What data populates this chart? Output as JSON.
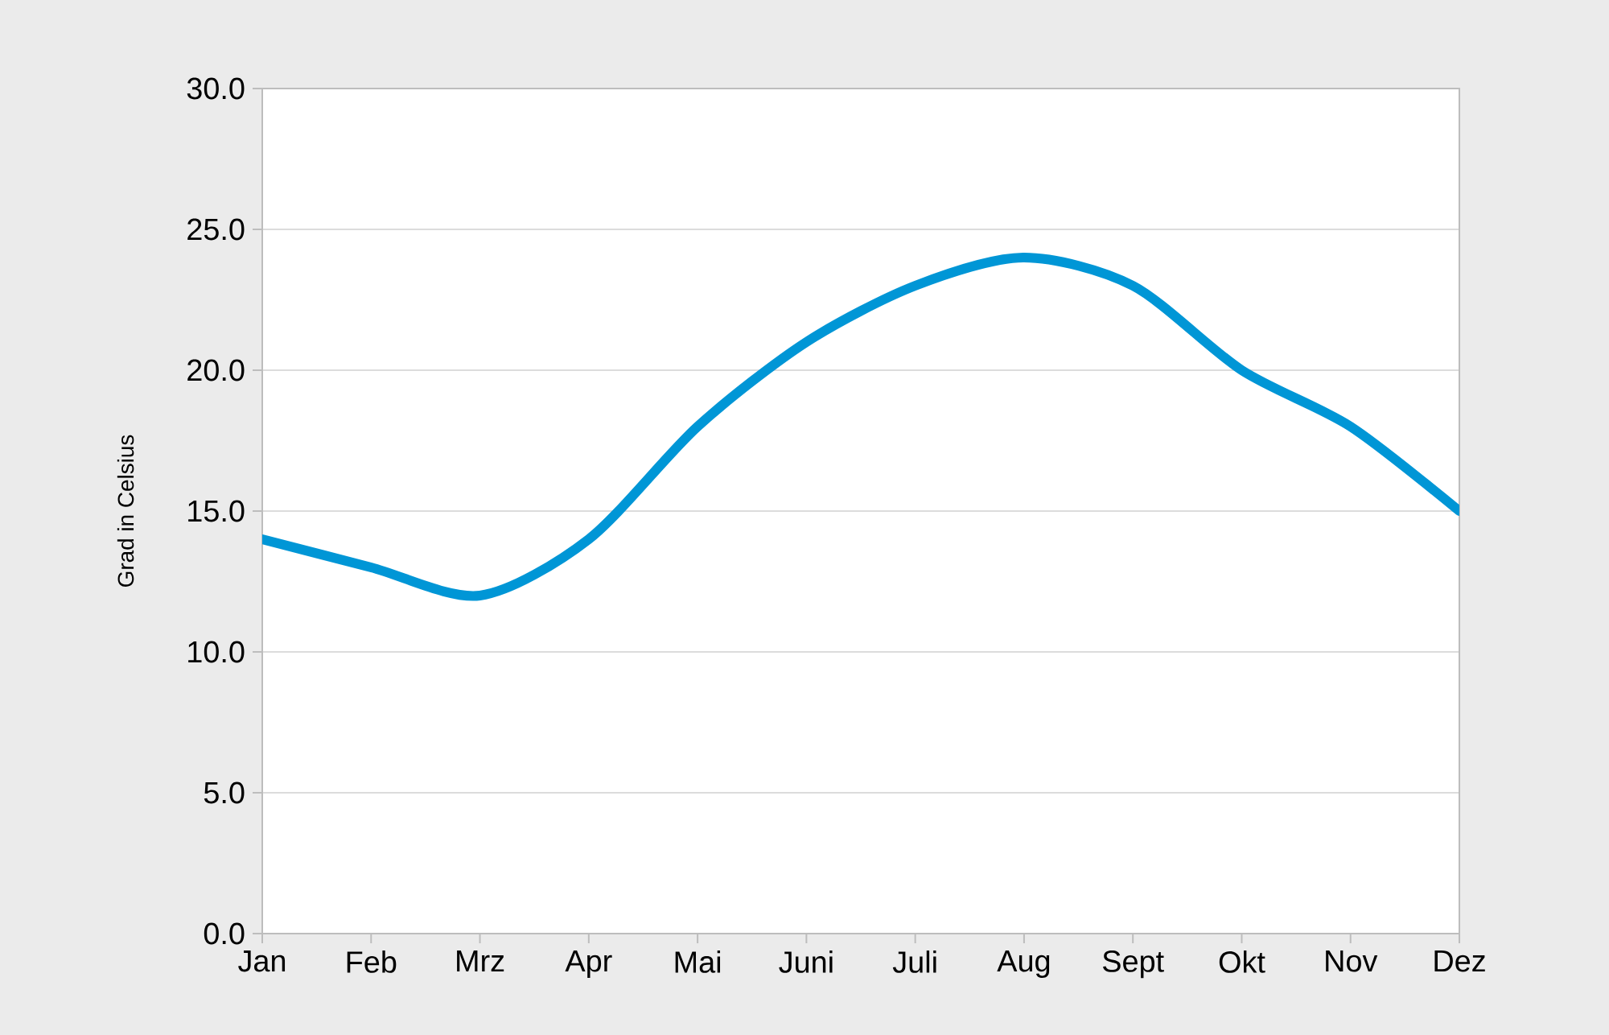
{
  "chart_data": {
    "type": "line",
    "ylabel": "Grad in Celsius",
    "categories": [
      "Jan",
      "Feb",
      "Mrz",
      "Apr",
      "Mai",
      "Juni",
      "Juli",
      "Aug",
      "Sept",
      "Okt",
      "Nov",
      "Dez"
    ],
    "series": [
      {
        "color": "#0096d6",
        "values": [
          14,
          13,
          12,
          14,
          18,
          21,
          23,
          24,
          23,
          20,
          18,
          15
        ]
      }
    ],
    "ylim": [
      0,
      30
    ],
    "yticks": [
      {
        "value": 0,
        "label": "0.0"
      },
      {
        "value": 5,
        "label": "5.0"
      },
      {
        "value": 10,
        "label": "10.0"
      },
      {
        "value": 15,
        "label": "15.0"
      },
      {
        "value": 20,
        "label": "20.0"
      },
      {
        "value": 25,
        "label": "25.0"
      },
      {
        "value": 30,
        "label": "30.0"
      }
    ],
    "grid": "y",
    "marker": "none",
    "line_style": "solid"
  }
}
